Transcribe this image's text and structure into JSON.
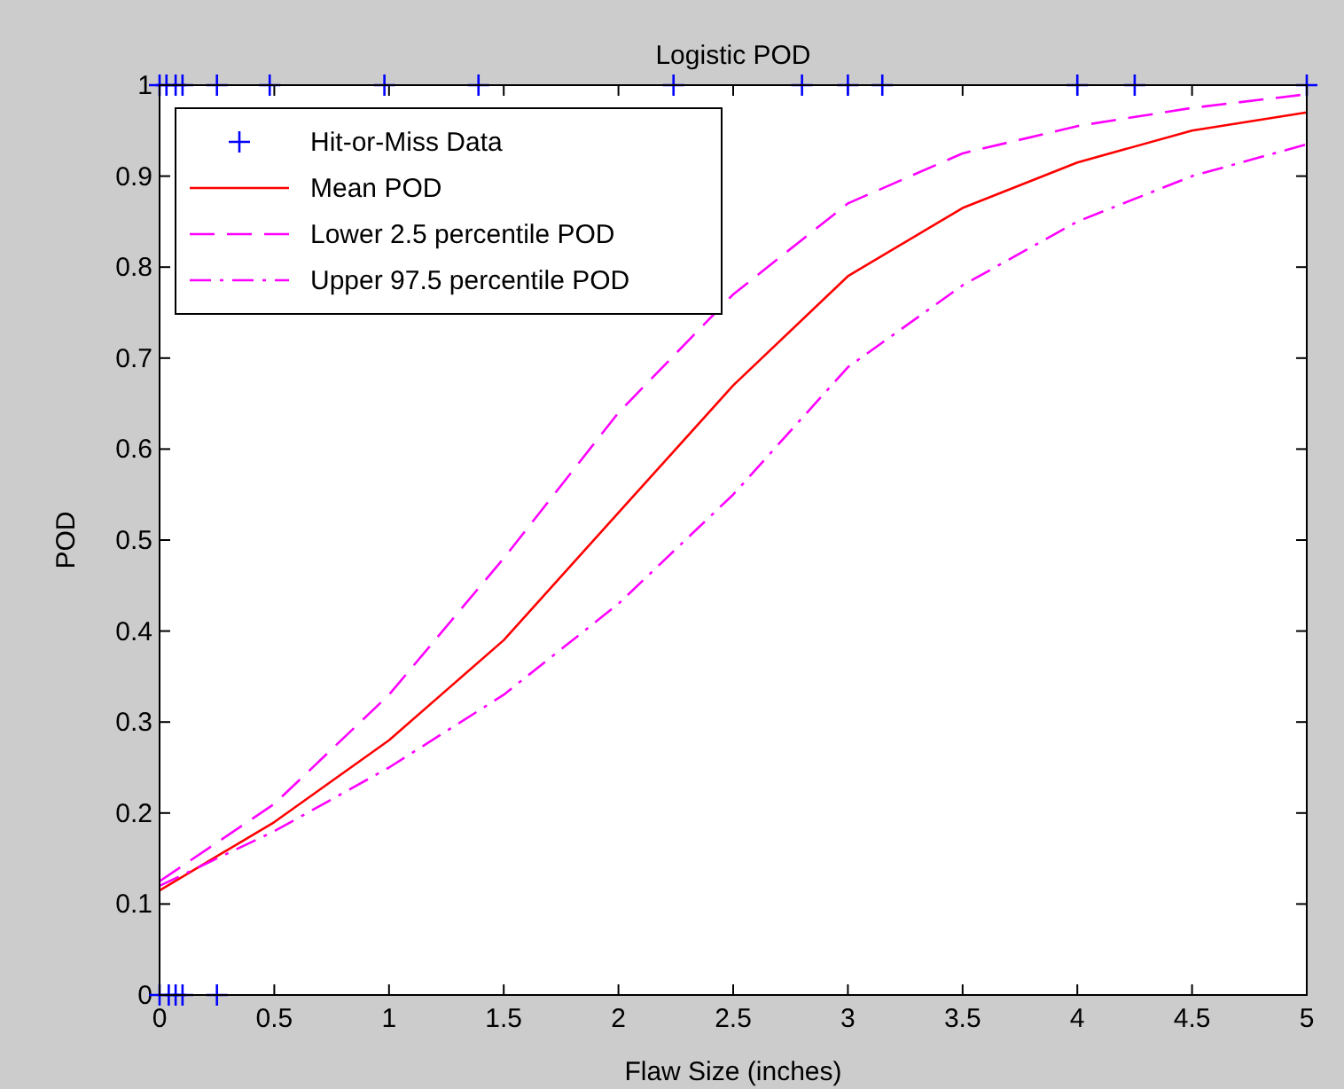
{
  "chart_data": {
    "type": "line",
    "title": "Logistic POD",
    "xlabel": "Flaw Size (inches)",
    "ylabel": "POD",
    "xlim": [
      0,
      5
    ],
    "ylim": [
      0,
      1
    ],
    "xticks": [
      0,
      0.5,
      1,
      1.5,
      2,
      2.5,
      3,
      3.5,
      4,
      4.5,
      5
    ],
    "yticks": [
      0,
      0.1,
      0.2,
      0.3,
      0.4,
      0.5,
      0.6,
      0.7,
      0.8,
      0.9,
      1
    ],
    "grid": false,
    "legend": "top left",
    "series": [
      {
        "name": "Hit-or-Miss Data",
        "type": "scatter",
        "marker": "cross",
        "color": "#0000ff",
        "x": [
          0,
          0.04,
          0.07,
          0.1,
          0.25,
          0,
          0.03,
          0.07,
          0.1,
          0.25,
          0.48,
          0.98,
          1.39,
          2.24,
          2.8,
          3,
          3.15,
          4,
          4.25,
          5
        ],
        "values": [
          0,
          0,
          0,
          0,
          0,
          1,
          1,
          1,
          1,
          1,
          1,
          1,
          1,
          1,
          1,
          1,
          1,
          1,
          1,
          1
        ]
      },
      {
        "name": "Mean POD",
        "color": "#ff0000",
        "line_style": "solid",
        "x": [
          0,
          0.5,
          1,
          1.5,
          2,
          2.5,
          3,
          3.5,
          4,
          4.5,
          5
        ],
        "values": [
          0.115,
          0.19,
          0.28,
          0.39,
          0.53,
          0.67,
          0.79,
          0.865,
          0.915,
          0.95,
          0.97
        ]
      },
      {
        "name": "Lower 2.5 percentile POD",
        "color": "#ff00ff",
        "line_style": "dashed",
        "x": [
          0,
          0.5,
          1,
          1.5,
          2,
          2.5,
          3,
          3.5,
          4,
          4.5,
          5
        ],
        "values": [
          0.125,
          0.21,
          0.33,
          0.48,
          0.64,
          0.77,
          0.87,
          0.925,
          0.955,
          0.975,
          0.99
        ]
      },
      {
        "name": "Upper 97.5 percentile POD",
        "color": "#ff00ff",
        "line_style": "dashdot",
        "x": [
          0,
          0.5,
          1,
          1.5,
          2,
          2.5,
          3,
          3.5,
          4,
          4.5,
          5
        ],
        "values": [
          0.12,
          0.18,
          0.25,
          0.33,
          0.43,
          0.55,
          0.69,
          0.78,
          0.85,
          0.9,
          0.935
        ]
      }
    ]
  }
}
